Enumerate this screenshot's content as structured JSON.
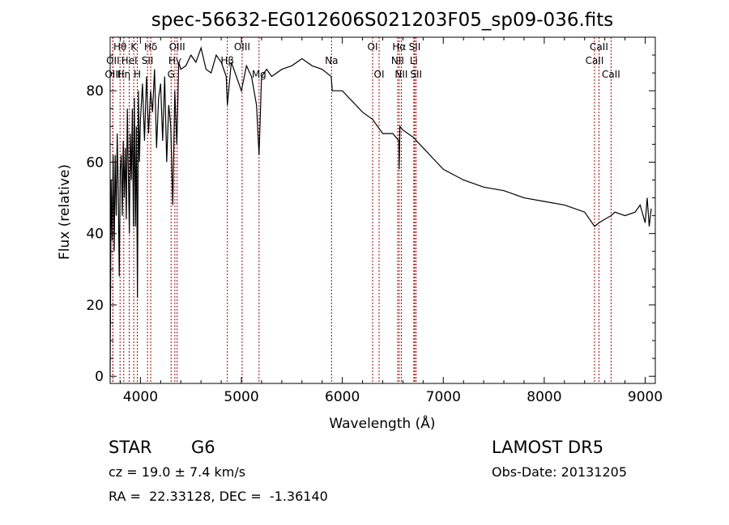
{
  "chart_data": {
    "type": "line",
    "title": "spec-56632-EG012606S021203F05_sp09-036.fits",
    "xlabel": "Wavelength (Å)",
    "ylabel": "Flux (relative)",
    "xlim": [
      3700,
      9100
    ],
    "ylim": [
      -2,
      95
    ],
    "x_ticks": [
      4000,
      5000,
      6000,
      7000,
      8000,
      9000
    ],
    "y_ticks": [
      0,
      20,
      40,
      60,
      80
    ],
    "grid": false,
    "line_color": "#000000",
    "marker_color": "#aa0000",
    "series": [
      {
        "x": [
          3700,
          3710,
          3720,
          3730,
          3740,
          3750,
          3760,
          3770,
          3780,
          3790,
          3800,
          3810,
          3820,
          3830,
          3840,
          3850,
          3860,
          3870,
          3880,
          3890,
          3900,
          3910,
          3920,
          3930,
          3940,
          3950,
          3960,
          3970,
          3980,
          3990,
          4000,
          4020,
          4040,
          4060,
          4080,
          4100,
          4120,
          4140,
          4160,
          4180,
          4200,
          4220,
          4240,
          4260,
          4280,
          4300,
          4320,
          4340,
          4360,
          4380,
          4400,
          4450,
          4500,
          4550,
          4600,
          4650,
          4700,
          4750,
          4800,
          4850,
          4861,
          4880,
          4900,
          4950,
          5000,
          5050,
          5100,
          5150,
          5175,
          5200,
          5250,
          5300,
          5400,
          5500,
          5600,
          5700,
          5800,
          5890,
          5900,
          6000,
          6100,
          6200,
          6300,
          6400,
          6500,
          6560,
          6563,
          6570,
          6600,
          6700,
          6800,
          6900,
          7000,
          7200,
          7400,
          7600,
          7800,
          8000,
          8200,
          8400,
          8498,
          8542,
          8600,
          8662,
          8700,
          8800,
          8900,
          8950,
          9000,
          9020,
          9040,
          9060
        ],
        "values": [
          0,
          55,
          38,
          62,
          35,
          62,
          45,
          68,
          52,
          28,
          58,
          62,
          45,
          66,
          50,
          64,
          44,
          75,
          58,
          40,
          68,
          55,
          75,
          42,
          78,
          42,
          70,
          22,
          80,
          60,
          72,
          82,
          66,
          84,
          68,
          80,
          74,
          86,
          64,
          78,
          82,
          66,
          84,
          60,
          76,
          70,
          48,
          80,
          65,
          88,
          86,
          87,
          90,
          88,
          92,
          86,
          85,
          90,
          88,
          84,
          76,
          82,
          88,
          84,
          80,
          87,
          84,
          76,
          62,
          84,
          86,
          84,
          86,
          87,
          89,
          87,
          86,
          84,
          80,
          80,
          77,
          74,
          72,
          68,
          68,
          66,
          58,
          70,
          69,
          67,
          64,
          61,
          58,
          55,
          53,
          52,
          50,
          49,
          48,
          46,
          42,
          43,
          44,
          45,
          46,
          45,
          46,
          48,
          43,
          50,
          42,
          47
        ]
      }
    ],
    "lines": [
      {
        "label": "Hθ",
        "x": 3798,
        "row": 1
      },
      {
        "label": "OII",
        "x": 3727,
        "row": 2
      },
      {
        "label": "OIII",
        "x": 3727,
        "row": 3
      },
      {
        "label": "K",
        "x": 3934,
        "row": 1
      },
      {
        "label": "HeI",
        "x": 3889,
        "row": 2
      },
      {
        "label": "Hη",
        "x": 3835,
        "row": 3
      },
      {
        "label": "SII",
        "x": 4070,
        "row": 2
      },
      {
        "label": "H",
        "x": 3969,
        "row": 3
      },
      {
        "label": "Hδ",
        "x": 4102,
        "row": 1
      },
      {
        "label": "OIII",
        "x": 4363,
        "row": 1
      },
      {
        "label": "Hγ",
        "x": 4341,
        "row": 2
      },
      {
        "label": "G",
        "x": 4304,
        "row": 3
      },
      {
        "label": "OIII",
        "x": 5007,
        "row": 1
      },
      {
        "label": "Hβ",
        "x": 4861,
        "row": 2
      },
      {
        "label": "Mg",
        "x": 5175,
        "row": 3
      },
      {
        "label": "Na",
        "x": 5893,
        "row": 2
      },
      {
        "label": "OI",
        "x": 6300,
        "row": 1
      },
      {
        "label": "OI",
        "x": 6364,
        "row": 3
      },
      {
        "label": "Hα",
        "x": 6563,
        "row": 1
      },
      {
        "label": "SII",
        "x": 6717,
        "row": 1
      },
      {
        "label": "NII",
        "x": 6548,
        "row": 2
      },
      {
        "label": "Li",
        "x": 6708,
        "row": 2
      },
      {
        "label": "NII",
        "x": 6584,
        "row": 3
      },
      {
        "label": "SII",
        "x": 6731,
        "row": 3
      },
      {
        "label": "CaII",
        "x": 8542,
        "row": 1
      },
      {
        "label": "CaII",
        "x": 8498,
        "row": 2
      },
      {
        "label": "CaII",
        "x": 8662,
        "row": 3
      }
    ]
  },
  "info": {
    "class": "STAR",
    "subclass": "G6",
    "survey": "LAMOST DR5",
    "cz": "cz = 19.0 ± 7.4 km/s",
    "obs_date": "Obs-Date: 20131205",
    "coords": "RA =  22.33128, DEC =  -1.36140"
  }
}
